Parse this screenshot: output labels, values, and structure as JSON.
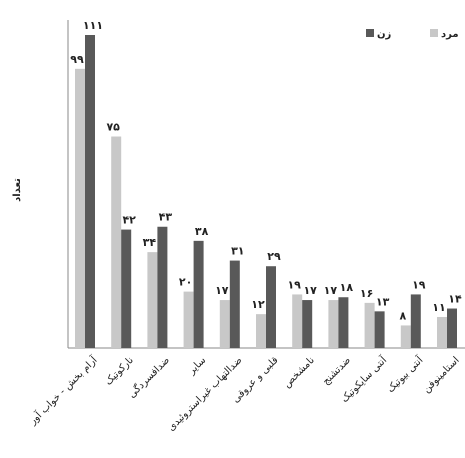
{
  "chart_data": {
    "type": "bar",
    "y_label": "تعداد",
    "categories": [
      "آرام بخش - خواب آور",
      "نارکوتیک",
      "ضدافسردگی",
      "سایر",
      "ضدالتهاب غیراستروئیدی",
      "قلبی و عروقی",
      "نامشخص",
      "ضدتشنج",
      "آنتی سایکوتیک",
      "آنتی بیوتیک",
      "استامینوفن"
    ],
    "series": [
      {
        "name": "مرد",
        "color": "#c8c8c8",
        "values": [
          99,
          75,
          34,
          20,
          17,
          12,
          19,
          17,
          16,
          8,
          11
        ],
        "value_labels": [
          "۹۹",
          "۷۵",
          "۳۴",
          "۲۰",
          "۱۷",
          "۱۲",
          "۱۹",
          "۱۷",
          "۱۶",
          "۸",
          "۱۱"
        ]
      },
      {
        "name": "زن",
        "color": "#595959",
        "values": [
          111,
          42,
          43,
          38,
          31,
          29,
          17,
          18,
          13,
          19,
          14
        ],
        "value_labels": [
          "۱۱۱",
          "۴۲",
          "۴۳",
          "۳۸",
          "۳۱",
          "۲۹",
          "۱۷",
          "۱۸",
          "۱۳",
          "۱۹",
          "۱۴"
        ]
      }
    ]
  }
}
